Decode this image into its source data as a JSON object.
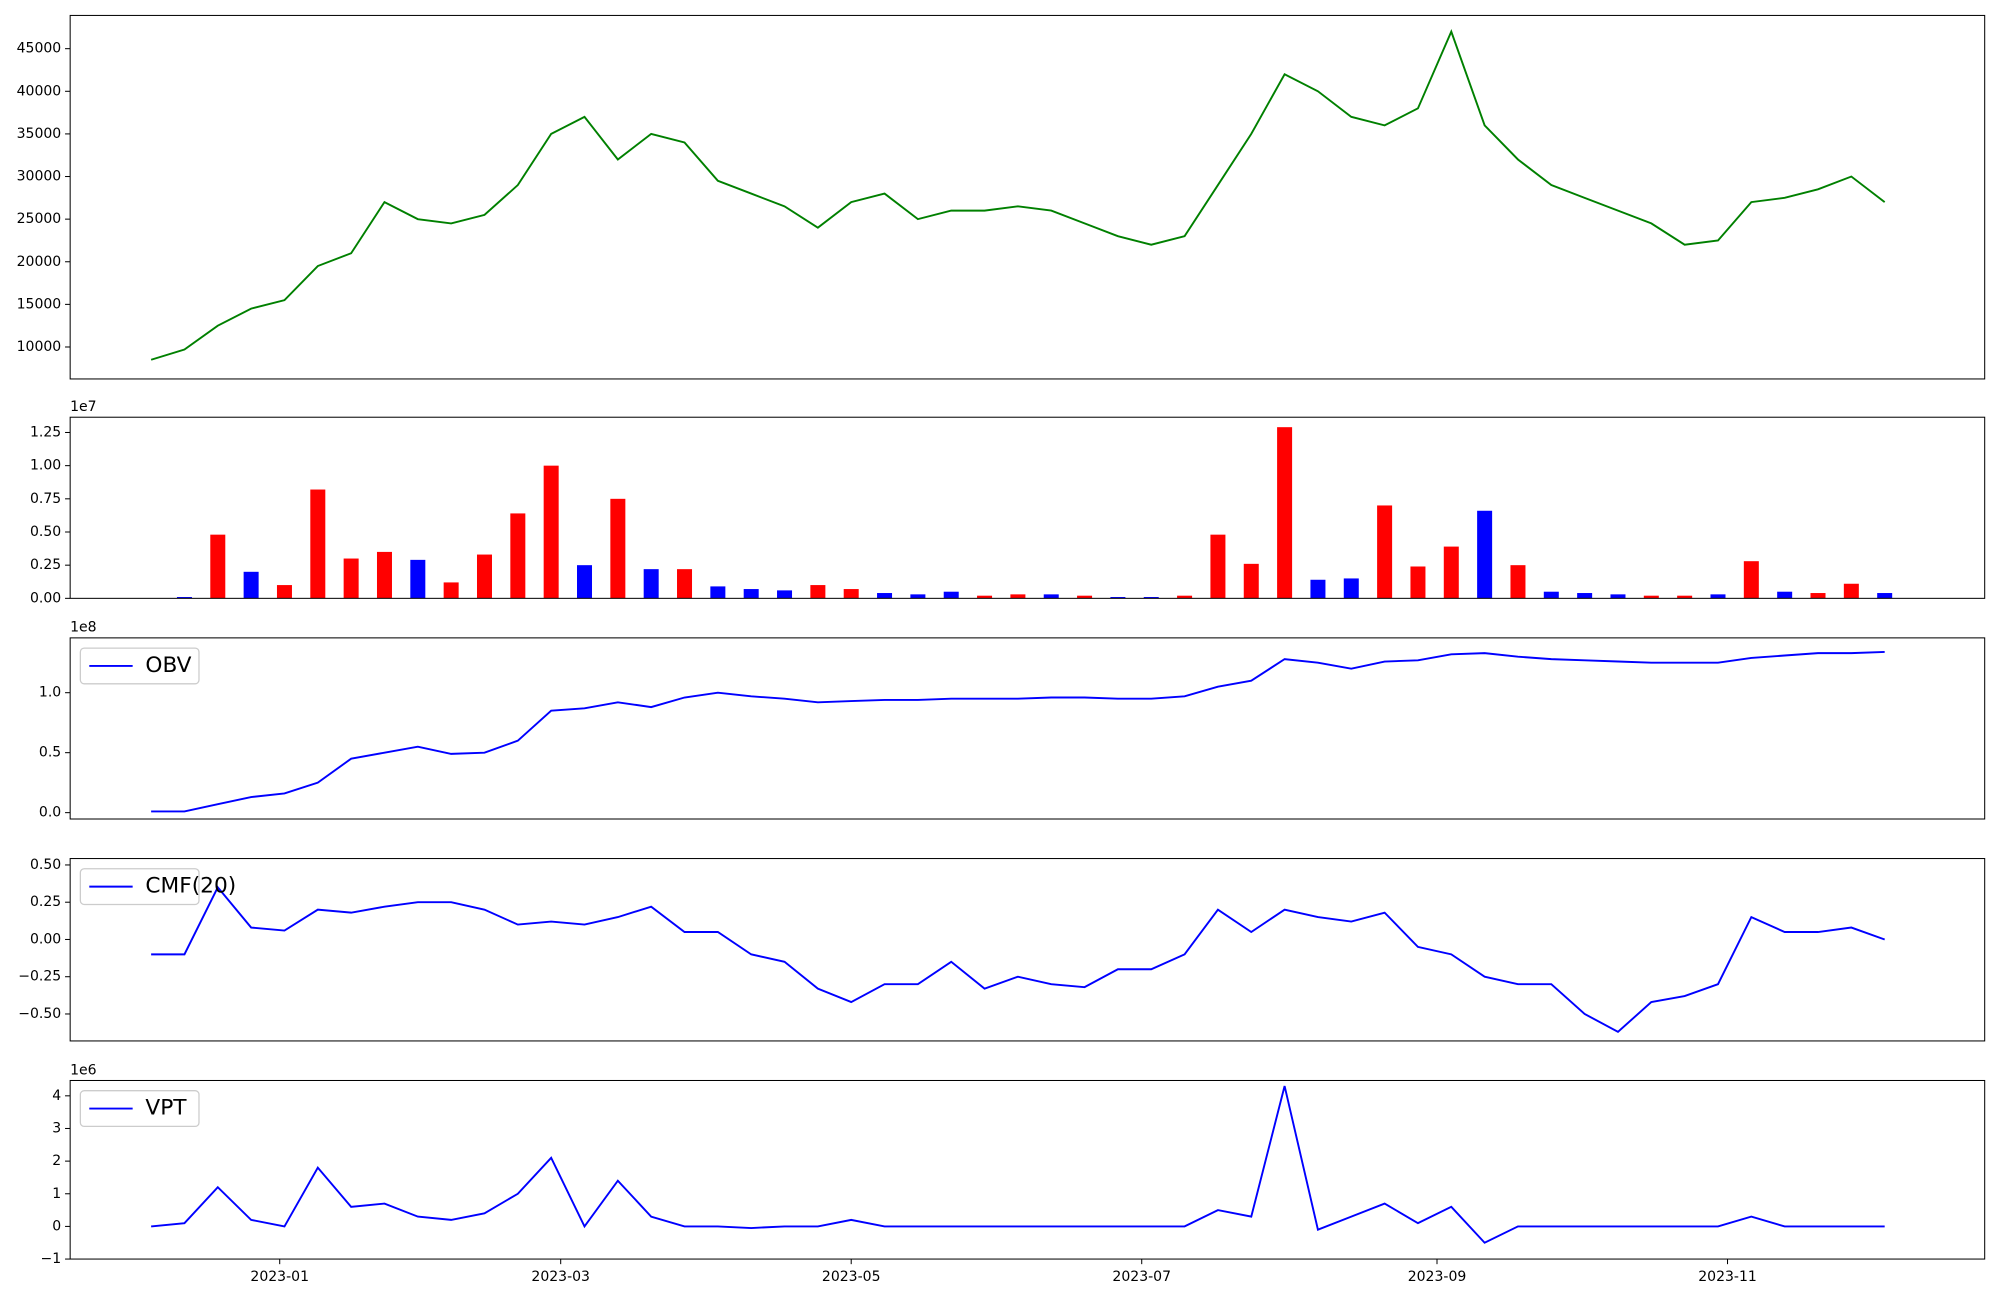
{
  "chart_data": [
    {
      "type": "line",
      "x": [
        "2022-12-05",
        "2022-12-12",
        "2022-12-19",
        "2022-12-26",
        "2023-01-02",
        "2023-01-09",
        "2023-01-16",
        "2023-01-23",
        "2023-01-30",
        "2023-02-06",
        "2023-02-13",
        "2023-02-20",
        "2023-02-27",
        "2023-03-06",
        "2023-03-13",
        "2023-03-20",
        "2023-03-27",
        "2023-04-03",
        "2023-04-10",
        "2023-04-17",
        "2023-04-24",
        "2023-05-01",
        "2023-05-08",
        "2023-05-15",
        "2023-05-22",
        "2023-05-29",
        "2023-06-05",
        "2023-06-12",
        "2023-06-19",
        "2023-06-26",
        "2023-07-03",
        "2023-07-10",
        "2023-07-17",
        "2023-07-24",
        "2023-07-31",
        "2023-08-07",
        "2023-08-14",
        "2023-08-21",
        "2023-08-28",
        "2023-09-04",
        "2023-09-11",
        "2023-09-18",
        "2023-09-25",
        "2023-10-02",
        "2023-10-09",
        "2023-10-16",
        "2023-10-23",
        "2023-10-30",
        "2023-11-06",
        "2023-11-13",
        "2023-11-20",
        "2023-11-27",
        "2023-12-04"
      ],
      "series": [
        {
          "color": "green",
          "values": [
            8500,
            9700,
            12500,
            14500,
            15500,
            19500,
            21000,
            27000,
            25000,
            24500,
            25500,
            29000,
            35000,
            37000,
            32000,
            35000,
            34000,
            29500,
            28000,
            26500,
            24000,
            27000,
            28000,
            25000,
            26000,
            26000,
            26500,
            26000,
            24500,
            23000,
            22000,
            23000,
            29000,
            35000,
            42000,
            40000,
            37000,
            36000,
            38000,
            47000,
            36000,
            32000,
            29000,
            27500,
            26000,
            24500,
            22000,
            22500,
            27000,
            27500,
            28500,
            30000,
            27000
          ]
        }
      ],
      "xlim": [
        "2022-11-18",
        "2023-12-25"
      ],
      "ylim": [
        6250,
        48900
      ],
      "yticks": [
        10000,
        15000,
        20000,
        25000,
        30000,
        35000,
        40000,
        45000
      ]
    },
    {
      "type": "bar",
      "x": [
        "2022-12-05",
        "2022-12-12",
        "2022-12-19",
        "2022-12-26",
        "2023-01-02",
        "2023-01-09",
        "2023-01-16",
        "2023-01-23",
        "2023-01-30",
        "2023-02-06",
        "2023-02-13",
        "2023-02-20",
        "2023-02-27",
        "2023-03-06",
        "2023-03-13",
        "2023-03-20",
        "2023-03-27",
        "2023-04-03",
        "2023-04-10",
        "2023-04-17",
        "2023-04-24",
        "2023-05-01",
        "2023-05-08",
        "2023-05-15",
        "2023-05-22",
        "2023-05-29",
        "2023-06-05",
        "2023-06-12",
        "2023-06-19",
        "2023-06-26",
        "2023-07-03",
        "2023-07-10",
        "2023-07-17",
        "2023-07-24",
        "2023-07-31",
        "2023-08-07",
        "2023-08-14",
        "2023-08-21",
        "2023-08-28",
        "2023-09-04",
        "2023-09-11",
        "2023-09-18",
        "2023-09-25",
        "2023-10-02",
        "2023-10-09",
        "2023-10-16",
        "2023-10-23",
        "2023-10-30",
        "2023-11-06",
        "2023-11-13",
        "2023-11-20",
        "2023-11-27",
        "2023-12-04"
      ],
      "values": [
        0,
        100000,
        4800000,
        2000000,
        1000000,
        8200000,
        3000000,
        3500000,
        2900000,
        1200000,
        3300000,
        6400000,
        10000000,
        2500000,
        7500000,
        2200000,
        2200000,
        900000,
        700000,
        600000,
        1000000,
        700000,
        400000,
        300000,
        500000,
        200000,
        300000,
        300000,
        200000,
        100000,
        100000,
        200000,
        4800000,
        2600000,
        12900000,
        1400000,
        1500000,
        7000000,
        2400000,
        3900000,
        6600000,
        2500000,
        500000,
        400000,
        300000,
        200000,
        200000,
        300000,
        2800000,
        500000,
        400000,
        1100000,
        400000
      ],
      "colors": [
        "blue",
        "blue",
        "red",
        "blue",
        "red",
        "red",
        "red",
        "red",
        "blue",
        "red",
        "red",
        "red",
        "red",
        "blue",
        "red",
        "blue",
        "red",
        "blue",
        "blue",
        "blue",
        "red",
        "red",
        "blue",
        "blue",
        "blue",
        "red",
        "red",
        "blue",
        "red",
        "blue",
        "blue",
        "red",
        "red",
        "red",
        "red",
        "blue",
        "blue",
        "red",
        "red",
        "red",
        "blue",
        "red",
        "blue",
        "blue",
        "blue",
        "red",
        "red",
        "blue",
        "red",
        "blue",
        "red",
        "red",
        "blue"
      ],
      "xlim": [
        "2022-11-18",
        "2023-12-25"
      ],
      "ylim": [
        0,
        13650000
      ],
      "yticks": [
        {
          "value": 0,
          "label": "0.00"
        },
        {
          "value": 2500000,
          "label": "0.25"
        },
        {
          "value": 5000000,
          "label": "0.50"
        },
        {
          "value": 7500000,
          "label": "0.75"
        },
        {
          "value": 10000000,
          "label": "1.00"
        },
        {
          "value": 12500000,
          "label": "1.25"
        }
      ],
      "y_offset_label": "1e7"
    },
    {
      "type": "line",
      "x": [
        "2022-12-05",
        "2022-12-12",
        "2022-12-19",
        "2022-12-26",
        "2023-01-02",
        "2023-01-09",
        "2023-01-16",
        "2023-01-23",
        "2023-01-30",
        "2023-02-06",
        "2023-02-13",
        "2023-02-20",
        "2023-02-27",
        "2023-03-06",
        "2023-03-13",
        "2023-03-20",
        "2023-03-27",
        "2023-04-03",
        "2023-04-10",
        "2023-04-17",
        "2023-04-24",
        "2023-05-01",
        "2023-05-08",
        "2023-05-15",
        "2023-05-22",
        "2023-05-29",
        "2023-06-05",
        "2023-06-12",
        "2023-06-19",
        "2023-06-26",
        "2023-07-03",
        "2023-07-10",
        "2023-07-17",
        "2023-07-24",
        "2023-07-31",
        "2023-08-07",
        "2023-08-14",
        "2023-08-21",
        "2023-08-28",
        "2023-09-04",
        "2023-09-11",
        "2023-09-18",
        "2023-09-25",
        "2023-10-02",
        "2023-10-09",
        "2023-10-16",
        "2023-10-23",
        "2023-10-30",
        "2023-11-06",
        "2023-11-13",
        "2023-11-20",
        "2023-11-27",
        "2023-12-04"
      ],
      "series": [
        {
          "name": "OBV",
          "color": "blue",
          "values": [
            1000000,
            1000000,
            7000000,
            13000000,
            16000000,
            25000000,
            45000000,
            50000000,
            55000000,
            49000000,
            50000000,
            60000000,
            85000000,
            87000000,
            92000000,
            88000000,
            96000000,
            100000000,
            97000000,
            95000000,
            92000000,
            93000000,
            94000000,
            94000000,
            95000000,
            95000000,
            95000000,
            96000000,
            96000000,
            95000000,
            95000000,
            97000000,
            105000000,
            110000000,
            128000000,
            125000000,
            120000000,
            126000000,
            127000000,
            132000000,
            133000000,
            130000000,
            128000000,
            127000000,
            126000000,
            125000000,
            125000000,
            125000000,
            129000000,
            131000000,
            133000000,
            133000000,
            134000000
          ]
        }
      ],
      "legend": "upper left",
      "xlim": [
        "2022-11-18",
        "2023-12-25"
      ],
      "ylim": [
        -5300000,
        145700000
      ],
      "yticks": [
        {
          "value": 0,
          "label": "0.0"
        },
        {
          "value": 50000000,
          "label": "0.5"
        },
        {
          "value": 100000000,
          "label": "1.0"
        }
      ],
      "y_offset_label": "1e8"
    },
    {
      "type": "line",
      "x": [
        "2022-12-05",
        "2022-12-12",
        "2022-12-19",
        "2022-12-26",
        "2023-01-02",
        "2023-01-09",
        "2023-01-16",
        "2023-01-23",
        "2023-01-30",
        "2023-02-06",
        "2023-02-13",
        "2023-02-20",
        "2023-02-27",
        "2023-03-06",
        "2023-03-13",
        "2023-03-20",
        "2023-03-27",
        "2023-04-03",
        "2023-04-10",
        "2023-04-17",
        "2023-04-24",
        "2023-05-01",
        "2023-05-08",
        "2023-05-15",
        "2023-05-22",
        "2023-05-29",
        "2023-06-05",
        "2023-06-12",
        "2023-06-19",
        "2023-06-26",
        "2023-07-03",
        "2023-07-10",
        "2023-07-17",
        "2023-07-24",
        "2023-07-31",
        "2023-08-07",
        "2023-08-14",
        "2023-08-21",
        "2023-08-28",
        "2023-09-04",
        "2023-09-11",
        "2023-09-18",
        "2023-09-25",
        "2023-10-02",
        "2023-10-09",
        "2023-10-16",
        "2023-10-23",
        "2023-10-30",
        "2023-11-06",
        "2023-11-13",
        "2023-11-20",
        "2023-11-27",
        "2023-12-04"
      ],
      "series": [
        {
          "name": "CMF(20)",
          "color": "blue",
          "values": [
            -0.1,
            -0.1,
            0.35,
            0.08,
            0.06,
            0.2,
            0.18,
            0.22,
            0.25,
            0.25,
            0.2,
            0.1,
            0.12,
            0.1,
            0.15,
            0.22,
            0.05,
            0.05,
            -0.1,
            -0.15,
            -0.33,
            -0.42,
            -0.3,
            -0.3,
            -0.15,
            -0.33,
            -0.25,
            -0.3,
            -0.32,
            -0.2,
            -0.2,
            -0.1,
            0.2,
            0.05,
            0.2,
            0.15,
            0.12,
            0.18,
            -0.05,
            -0.1,
            -0.25,
            -0.3,
            -0.3,
            -0.5,
            -0.62,
            -0.42,
            -0.38,
            -0.3,
            0.15,
            0.05,
            0.05,
            0.08,
            0
          ]
        }
      ],
      "legend": "upper left",
      "xlim": [
        "2022-11-18",
        "2023-12-25"
      ],
      "ylim": [
        -0.681,
        0.543
      ],
      "yticks": [
        {
          "value": -0.5,
          "label": "−0.50"
        },
        {
          "value": -0.25,
          "label": "−0.25"
        },
        {
          "value": 0,
          "label": "0.00"
        },
        {
          "value": 0.25,
          "label": "0.25"
        },
        {
          "value": 0.5,
          "label": "0.50"
        }
      ]
    },
    {
      "type": "line",
      "x": [
        "2022-12-05",
        "2022-12-12",
        "2022-12-19",
        "2022-12-26",
        "2023-01-02",
        "2023-01-09",
        "2023-01-16",
        "2023-01-23",
        "2023-01-30",
        "2023-02-06",
        "2023-02-13",
        "2023-02-20",
        "2023-02-27",
        "2023-03-06",
        "2023-03-13",
        "2023-03-20",
        "2023-03-27",
        "2023-04-03",
        "2023-04-10",
        "2023-04-17",
        "2023-04-24",
        "2023-05-01",
        "2023-05-08",
        "2023-05-15",
        "2023-05-22",
        "2023-05-29",
        "2023-06-05",
        "2023-06-12",
        "2023-06-19",
        "2023-06-26",
        "2023-07-03",
        "2023-07-10",
        "2023-07-17",
        "2023-07-24",
        "2023-07-31",
        "2023-08-07",
        "2023-08-14",
        "2023-08-21",
        "2023-08-28",
        "2023-09-04",
        "2023-09-11",
        "2023-09-18",
        "2023-09-25",
        "2023-10-02",
        "2023-10-09",
        "2023-10-16",
        "2023-10-23",
        "2023-10-30",
        "2023-11-06",
        "2023-11-13",
        "2023-11-20",
        "2023-11-27",
        "2023-12-04"
      ],
      "series": [
        {
          "name": "VPT",
          "color": "blue",
          "values": [
            0,
            100000,
            1200000,
            200000,
            0,
            1800000,
            600000,
            700000,
            300000,
            200000,
            400000,
            1000000,
            2100000,
            0,
            1400000,
            300000,
            0,
            0,
            -50000,
            0,
            0,
            200000,
            0,
            0,
            0,
            0,
            0,
            0,
            0,
            0,
            0,
            0,
            500000,
            300000,
            4300000,
            -100000,
            300000,
            700000,
            100000,
            600000,
            -500000,
            0,
            0,
            0,
            0,
            0,
            0,
            0,
            300000,
            0,
            0,
            0,
            0
          ]
        }
      ],
      "legend": "upper left",
      "xlim": [
        "2022-11-18",
        "2023-12-25"
      ],
      "ylim": [
        -1000000,
        4470000
      ],
      "yticks": [
        {
          "value": -1000000,
          "label": "−1"
        },
        {
          "value": 0,
          "label": "0"
        },
        {
          "value": 1000000,
          "label": "1"
        },
        {
          "value": 2000000,
          "label": "2"
        },
        {
          "value": 3000000,
          "label": "3"
        },
        {
          "value": 4000000,
          "label": "4"
        }
      ],
      "y_offset_label": "1e6",
      "xticks": [
        {
          "value": "2023-01-01",
          "label": "2023-01"
        },
        {
          "value": "2023-03-01",
          "label": "2023-03"
        },
        {
          "value": "2023-05-01",
          "label": "2023-05"
        },
        {
          "value": "2023-07-01",
          "label": "2023-07"
        },
        {
          "value": "2023-09-01",
          "label": "2023-09"
        },
        {
          "value": "2023-11-01",
          "label": "2023-11"
        }
      ]
    }
  ]
}
